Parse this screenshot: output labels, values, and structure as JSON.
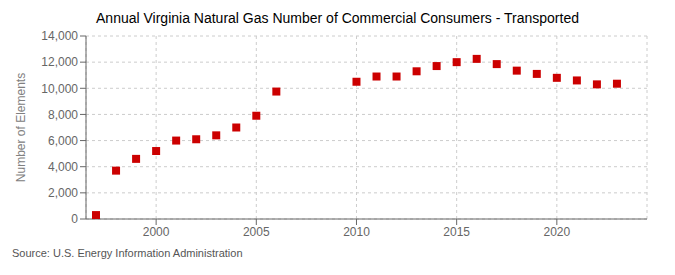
{
  "chart_data": {
    "type": "scatter",
    "title": "Annual Virginia Natural Gas Number of Commercial Consumers - Transported",
    "ylabel": "Number of Elements",
    "annotation": "Source: U.S. Energy Information Administration",
    "x": [
      1997,
      1998,
      1999,
      2000,
      2001,
      2002,
      2003,
      2004,
      2005,
      2006,
      2010,
      2011,
      2012,
      2013,
      2014,
      2015,
      2016,
      2017,
      2018,
      2019,
      2020,
      2021,
      2022,
      2023
    ],
    "values": [
      300,
      3700,
      4600,
      5200,
      6000,
      6100,
      6400,
      7000,
      7900,
      9750,
      10500,
      10900,
      10900,
      11300,
      11700,
      12000,
      12250,
      11850,
      11350,
      11100,
      10800,
      10600,
      10300,
      10350
    ],
    "color": "#cc0000",
    "marker": "square",
    "xlim": [
      1996.5,
      2024.5
    ],
    "xticks": [
      2000,
      2005,
      2010,
      2015,
      2020
    ],
    "ylim": [
      0,
      14000
    ],
    "yticks": [
      0,
      {
        "value": 2000,
        "label": "2,000"
      },
      {
        "value": 4000,
        "label": "4,000"
      },
      {
        "value": 6000,
        "label": "6,000"
      },
      {
        "value": 8000,
        "label": "8,000"
      },
      {
        "value": 10000,
        "label": "10,000"
      },
      {
        "value": 12000,
        "label": "12,000"
      },
      {
        "value": 14000,
        "label": "14,000"
      }
    ],
    "grid": true
  }
}
